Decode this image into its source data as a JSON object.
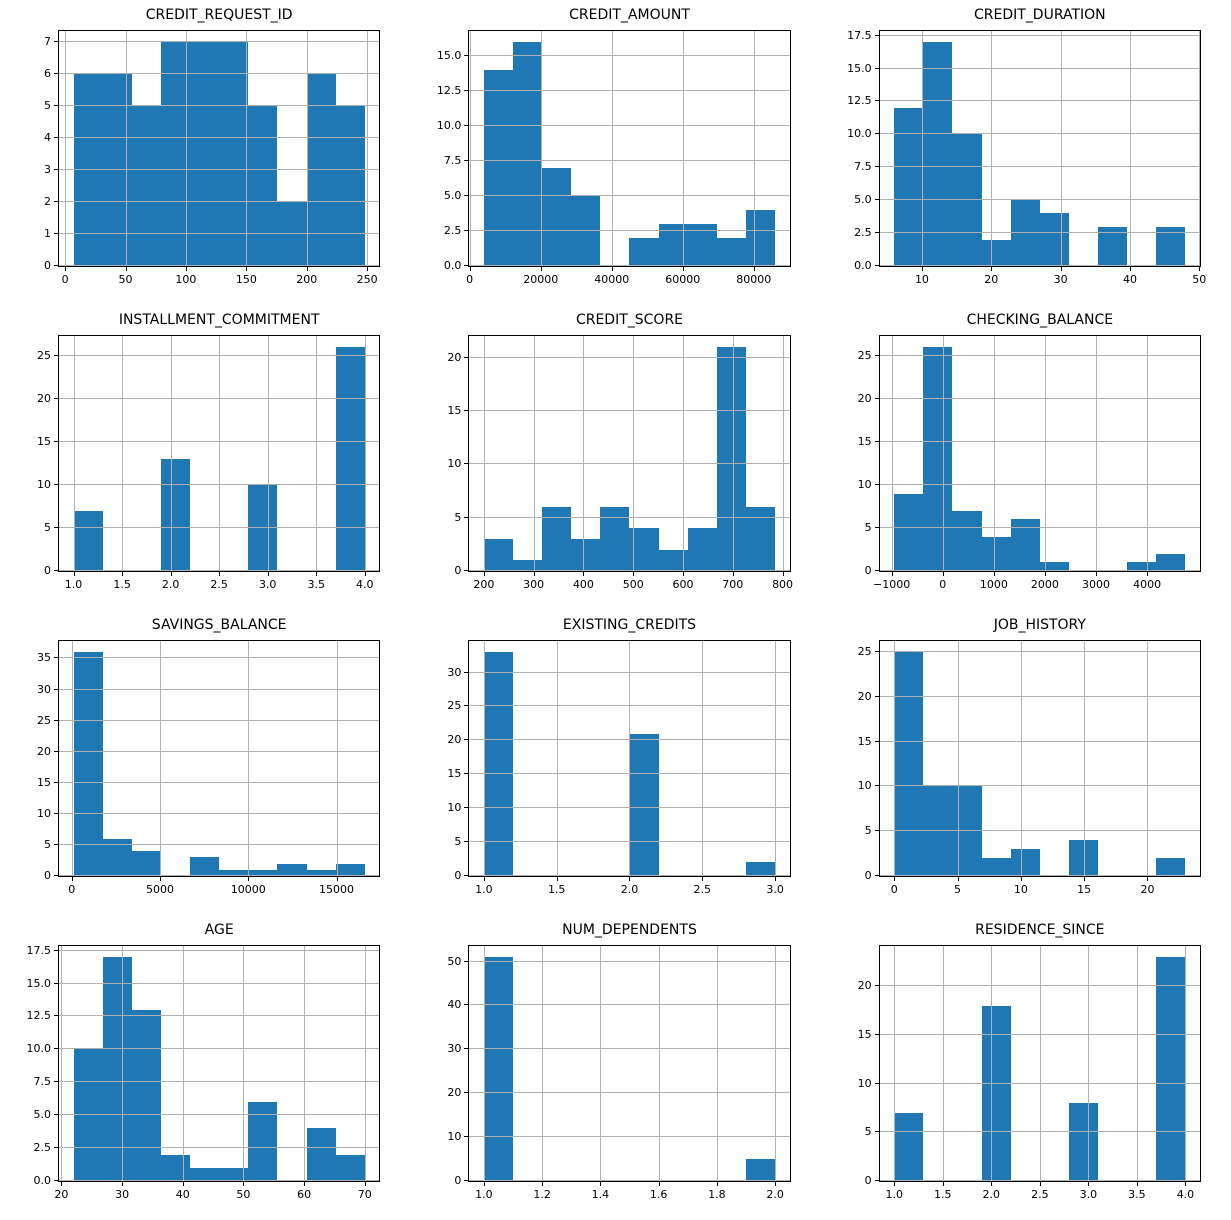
{
  "figure": {
    "type": "histogram-grid",
    "rows": 4,
    "cols": 3,
    "bar_color": "#1f77b4",
    "grid_color": "#b0b0b0",
    "spine_color": "#000000",
    "background": "#ffffff",
    "total_records_per_plot": 56
  },
  "chart_data": [
    {
      "type": "bar",
      "title": "CREDIT_REQUEST_ID",
      "bin_start": 7,
      "bin_end": 248,
      "counts": [
        6,
        6,
        5,
        7,
        7,
        7,
        5,
        2,
        6,
        5
      ],
      "xlim": [
        -5.05,
        260.05
      ],
      "ylim": [
        0,
        7.35
      ],
      "xticks": [
        0,
        50,
        100,
        150,
        200,
        250
      ],
      "xtick_labels": [
        "0",
        "50",
        "100",
        "150",
        "200",
        "250"
      ],
      "yticks": [
        0,
        1,
        2,
        3,
        4,
        5,
        6,
        7
      ],
      "ytick_labels": [
        "0",
        "1",
        "2",
        "3",
        "4",
        "5",
        "6",
        "7"
      ],
      "grid": true
    },
    {
      "type": "bar",
      "title": "CREDIT_AMOUNT",
      "bin_start": 4000,
      "bin_end": 86000,
      "counts": [
        14,
        16,
        7,
        5,
        0,
        2,
        3,
        3,
        2,
        4
      ],
      "xlim": [
        -100,
        90100
      ],
      "ylim": [
        0,
        16.8
      ],
      "xticks": [
        0,
        20000,
        40000,
        60000,
        80000
      ],
      "xtick_labels": [
        "0",
        "20000",
        "40000",
        "60000",
        "80000"
      ],
      "yticks": [
        0,
        2.5,
        5,
        7.5,
        10,
        12.5,
        15
      ],
      "ytick_labels": [
        "0.0",
        "2.5",
        "5.0",
        "7.5",
        "10.0",
        "12.5",
        "15.0"
      ],
      "grid": true
    },
    {
      "type": "bar",
      "title": "CREDIT_DURATION",
      "bin_start": 6,
      "bin_end": 48,
      "counts": [
        12,
        17,
        10,
        2,
        5,
        4,
        0,
        3,
        0,
        3
      ],
      "xlim": [
        3.9,
        50.1
      ],
      "ylim": [
        0,
        17.85
      ],
      "xticks": [
        10,
        20,
        30,
        40,
        50
      ],
      "xtick_labels": [
        "10",
        "20",
        "30",
        "40",
        "50"
      ],
      "yticks": [
        0,
        2.5,
        5,
        7.5,
        10,
        12.5,
        15,
        17.5
      ],
      "ytick_labels": [
        "0.0",
        "2.5",
        "5.0",
        "7.5",
        "10.0",
        "12.5",
        "15.0",
        "17.5"
      ],
      "grid": true
    },
    {
      "type": "bar",
      "title": "INSTALLMENT_COMMITMENT",
      "bin_start": 1,
      "bin_end": 4,
      "counts": [
        7,
        0,
        0,
        13,
        0,
        0,
        10,
        0,
        0,
        26
      ],
      "xlim": [
        0.85,
        4.15
      ],
      "ylim": [
        0,
        27.3
      ],
      "xticks": [
        1,
        1.5,
        2,
        2.5,
        3,
        3.5,
        4
      ],
      "xtick_labels": [
        "1.0",
        "1.5",
        "2.0",
        "2.5",
        "3.0",
        "3.5",
        "4.0"
      ],
      "yticks": [
        0,
        5,
        10,
        15,
        20,
        25
      ],
      "ytick_labels": [
        "0",
        "5",
        "10",
        "15",
        "20",
        "25"
      ],
      "grid": true
    },
    {
      "type": "bar",
      "title": "CREDIT_SCORE",
      "bin_start": 200,
      "bin_end": 785,
      "counts": [
        3,
        1,
        6,
        3,
        6,
        4,
        2,
        4,
        21,
        6
      ],
      "xlim": [
        170.75,
        814.25
      ],
      "ylim": [
        0,
        22.05
      ],
      "xticks": [
        200,
        300,
        400,
        500,
        600,
        700,
        800
      ],
      "xtick_labels": [
        "200",
        "300",
        "400",
        "500",
        "600",
        "700",
        "800"
      ],
      "yticks": [
        0,
        5,
        10,
        15,
        20
      ],
      "ytick_labels": [
        "0",
        "5",
        "10",
        "15",
        "20"
      ],
      "grid": true
    },
    {
      "type": "bar",
      "title": "CHECKING_BALANCE",
      "bin_start": -950,
      "bin_end": 4750,
      "counts": [
        9,
        26,
        7,
        4,
        6,
        1,
        0,
        0,
        1,
        2
      ],
      "xlim": [
        -1235,
        5035
      ],
      "ylim": [
        0,
        27.3
      ],
      "xticks": [
        -1000,
        0,
        1000,
        2000,
        3000,
        4000
      ],
      "xtick_labels": [
        "−1000",
        "0",
        "1000",
        "2000",
        "3000",
        "4000"
      ],
      "yticks": [
        0,
        5,
        10,
        15,
        20,
        25
      ],
      "ytick_labels": [
        "0",
        "5",
        "10",
        "15",
        "20",
        "25"
      ],
      "grid": true
    },
    {
      "type": "bar",
      "title": "SAVINGS_BALANCE",
      "bin_start": 100,
      "bin_end": 16600,
      "counts": [
        36,
        6,
        4,
        0,
        3,
        1,
        1,
        2,
        1,
        2
      ],
      "xlim": [
        -725,
        17425
      ],
      "ylim": [
        0,
        37.8
      ],
      "xticks": [
        0,
        5000,
        10000,
        15000
      ],
      "xtick_labels": [
        "0",
        "5000",
        "10000",
        "15000"
      ],
      "yticks": [
        0,
        5,
        10,
        15,
        20,
        25,
        30,
        35
      ],
      "ytick_labels": [
        "0",
        "5",
        "10",
        "15",
        "20",
        "25",
        "30",
        "35"
      ],
      "grid": true
    },
    {
      "type": "bar",
      "title": "EXISTING_CREDITS",
      "bin_start": 1,
      "bin_end": 3,
      "counts": [
        33,
        0,
        0,
        0,
        0,
        21,
        0,
        0,
        0,
        2
      ],
      "xlim": [
        0.9,
        3.1
      ],
      "ylim": [
        0,
        34.65
      ],
      "xticks": [
        1,
        1.5,
        2,
        2.5,
        3
      ],
      "xtick_labels": [
        "1.0",
        "1.5",
        "2.0",
        "2.5",
        "3.0"
      ],
      "yticks": [
        0,
        5,
        10,
        15,
        20,
        25,
        30
      ],
      "ytick_labels": [
        "0",
        "5",
        "10",
        "15",
        "20",
        "25",
        "30"
      ],
      "grid": true
    },
    {
      "type": "bar",
      "title": "JOB_HISTORY",
      "bin_start": 0,
      "bin_end": 23,
      "counts": [
        25,
        10,
        10,
        2,
        3,
        0,
        4,
        0,
        0,
        2
      ],
      "xlim": [
        -1.15,
        24.15
      ],
      "ylim": [
        0,
        26.25
      ],
      "xticks": [
        0,
        5,
        10,
        15,
        20
      ],
      "xtick_labels": [
        "0",
        "5",
        "10",
        "15",
        "20"
      ],
      "yticks": [
        0,
        5,
        10,
        15,
        20,
        25
      ],
      "ytick_labels": [
        "0",
        "5",
        "10",
        "15",
        "20",
        "25"
      ],
      "grid": true
    },
    {
      "type": "bar",
      "title": "AGE",
      "bin_start": 22,
      "bin_end": 70,
      "counts": [
        10,
        17,
        13,
        2,
        1,
        1,
        6,
        0,
        4,
        2
      ],
      "xlim": [
        19.6,
        72.4
      ],
      "ylim": [
        0,
        17.85
      ],
      "xticks": [
        20,
        30,
        40,
        50,
        60,
        70
      ],
      "xtick_labels": [
        "20",
        "30",
        "40",
        "50",
        "60",
        "70"
      ],
      "yticks": [
        0,
        2.5,
        5,
        7.5,
        10,
        12.5,
        15,
        17.5
      ],
      "ytick_labels": [
        "0.0",
        "2.5",
        "5.0",
        "7.5",
        "10.0",
        "12.5",
        "15.0",
        "17.5"
      ],
      "grid": true
    },
    {
      "type": "bar",
      "title": "NUM_DEPENDENTS",
      "bin_start": 1,
      "bin_end": 2,
      "counts": [
        51,
        0,
        0,
        0,
        0,
        0,
        0,
        0,
        0,
        5
      ],
      "xlim": [
        0.95,
        2.05
      ],
      "ylim": [
        0,
        53.55
      ],
      "xticks": [
        1,
        1.2,
        1.4,
        1.6,
        1.8,
        2
      ],
      "xtick_labels": [
        "1.0",
        "1.2",
        "1.4",
        "1.6",
        "1.8",
        "2.0"
      ],
      "yticks": [
        0,
        10,
        20,
        30,
        40,
        50
      ],
      "ytick_labels": [
        "0",
        "10",
        "20",
        "30",
        "40",
        "50"
      ],
      "grid": true
    },
    {
      "type": "bar",
      "title": "RESIDENCE_SINCE",
      "bin_start": 1,
      "bin_end": 4,
      "counts": [
        7,
        0,
        0,
        18,
        0,
        0,
        8,
        0,
        0,
        23
      ],
      "xlim": [
        0.85,
        4.15
      ],
      "ylim": [
        0,
        24.15
      ],
      "xticks": [
        1,
        1.5,
        2,
        2.5,
        3,
        3.5,
        4
      ],
      "xtick_labels": [
        "1.0",
        "1.5",
        "2.0",
        "2.5",
        "3.0",
        "3.5",
        "4.0"
      ],
      "yticks": [
        0,
        5,
        10,
        15,
        20
      ],
      "ytick_labels": [
        "0",
        "5",
        "10",
        "15",
        "20"
      ],
      "grid": true
    }
  ]
}
